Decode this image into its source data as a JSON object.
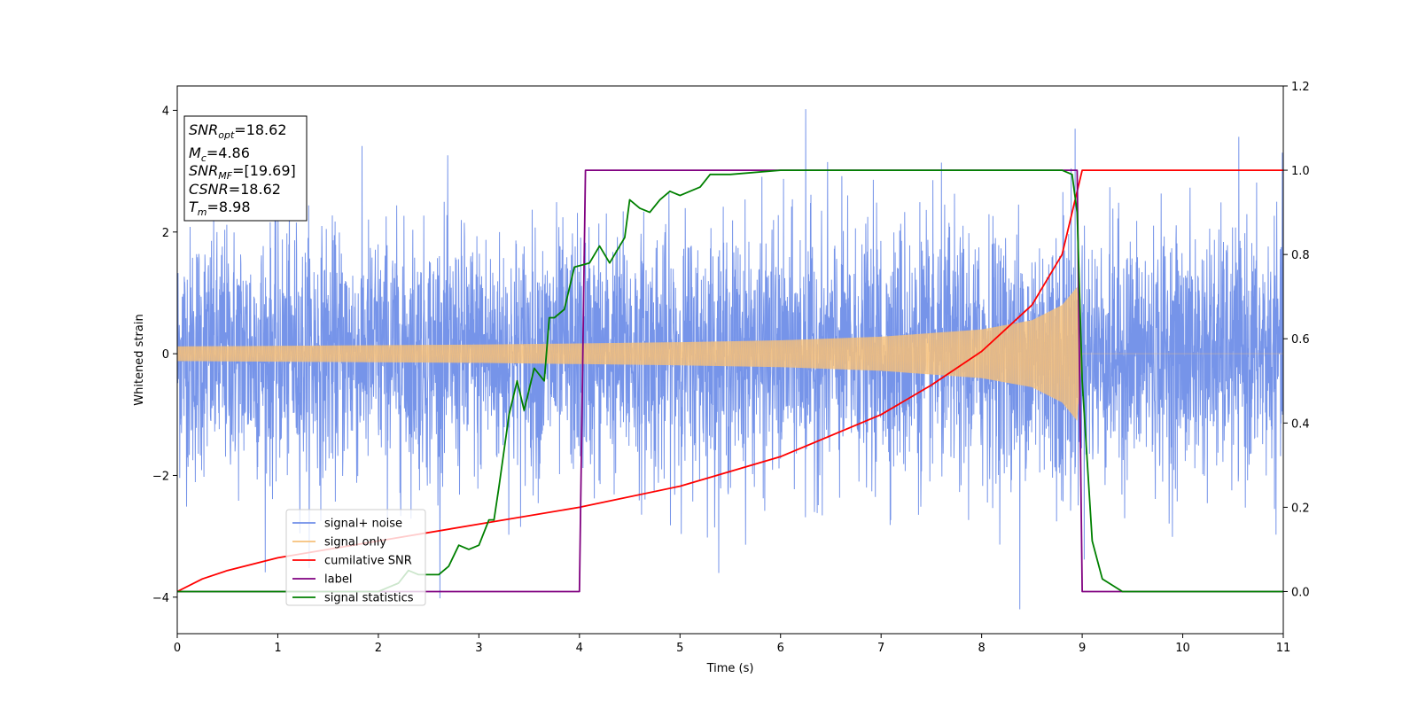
{
  "chart_data": {
    "type": "line",
    "xlabel": "Time (s)",
    "ylabel": "Whitened strain",
    "xlim": [
      0,
      11
    ],
    "ylim": [
      -4.6,
      4.4
    ],
    "y2lim": [
      -0.1,
      1.2
    ],
    "x_ticks": [
      "0",
      "1",
      "2",
      "3",
      "4",
      "5",
      "6",
      "7",
      "8",
      "9",
      "10",
      "11"
    ],
    "y_ticks": [
      "−4",
      "−2",
      "0",
      "2",
      "4"
    ],
    "y2_ticks": [
      "0.0",
      "0.2",
      "0.4",
      "0.6",
      "0.8",
      "1.0",
      "1.2"
    ],
    "grid": false,
    "legend_position": "lower-left",
    "info_box": {
      "snr_opt": {
        "sym": "SNR",
        "sub": "opt",
        "value": "=18.62"
      },
      "mc": {
        "sym": "M",
        "sub": "c",
        "value": "=4.86"
      },
      "snr_mf": {
        "sym": "SNR",
        "sub": "MF",
        "value": "=[19.69]"
      },
      "csnr": {
        "sym": "CSNR",
        "sub": "",
        "value": "=18.62"
      },
      "tm": {
        "sym": "T",
        "sub": "m",
        "value": "=8.98"
      }
    },
    "series": [
      {
        "name": "signal+ noise",
        "color": "#6f8ee8",
        "axis": "left",
        "description_points": {
          "noise_amplitude": 1.0,
          "max_peak": [
            6.25,
            4.02
          ],
          "min_peak": [
            8.38,
            -4.2
          ]
        }
      },
      {
        "name": "signal only",
        "color": "#f6c07a",
        "axis": "left",
        "x": [
          0,
          1,
          2,
          3,
          4,
          5,
          6,
          7,
          8,
          8.5,
          8.8,
          8.95,
          9.0,
          11
        ],
        "envelope": [
          0.12,
          0.13,
          0.14,
          0.15,
          0.17,
          0.19,
          0.22,
          0.28,
          0.4,
          0.55,
          0.8,
          1.1,
          0.0,
          0.0
        ]
      },
      {
        "name": "cumilative SNR",
        "color": "#ff0000",
        "axis": "right",
        "x": [
          0,
          0.25,
          0.5,
          1,
          1.5,
          2,
          3,
          4,
          5,
          6,
          7,
          7.5,
          8,
          8.5,
          8.8,
          9.0,
          11
        ],
        "y": [
          0.0,
          0.03,
          0.05,
          0.08,
          0.1,
          0.12,
          0.16,
          0.2,
          0.25,
          0.32,
          0.42,
          0.49,
          0.57,
          0.68,
          0.8,
          1.0,
          1.0
        ]
      },
      {
        "name": "label",
        "color": "#800080",
        "axis": "right",
        "x": [
          0,
          4.0,
          4.06,
          8.95,
          9.0,
          11
        ],
        "y": [
          0,
          0,
          1,
          1,
          0,
          0
        ]
      },
      {
        "name": "signal statistics",
        "color": "#008000",
        "axis": "right",
        "x": [
          0,
          1,
          2,
          2.1,
          2.2,
          2.3,
          2.4,
          2.5,
          2.6,
          2.7,
          2.8,
          2.9,
          3.0,
          3.1,
          3.15,
          3.2,
          3.3,
          3.38,
          3.45,
          3.55,
          3.65,
          3.7,
          3.75,
          3.85,
          3.95,
          4.1,
          4.2,
          4.3,
          4.45,
          4.5,
          4.6,
          4.7,
          4.8,
          4.9,
          5.0,
          5.1,
          5.2,
          5.3,
          5.5,
          6.0,
          7.0,
          8.0,
          8.8,
          8.9,
          8.95,
          9.0,
          9.1,
          9.2,
          9.4,
          11
        ],
        "y": [
          0.0,
          0.0,
          0.0,
          0.01,
          0.02,
          0.05,
          0.04,
          0.04,
          0.04,
          0.06,
          0.11,
          0.1,
          0.11,
          0.17,
          0.17,
          0.25,
          0.42,
          0.5,
          0.43,
          0.53,
          0.5,
          0.65,
          0.65,
          0.67,
          0.77,
          0.78,
          0.82,
          0.78,
          0.84,
          0.93,
          0.91,
          0.9,
          0.93,
          0.95,
          0.94,
          0.95,
          0.96,
          0.99,
          0.99,
          1.0,
          1.0,
          1.0,
          1.0,
          0.99,
          0.9,
          0.5,
          0.12,
          0.03,
          0.0,
          0.0
        ]
      }
    ]
  }
}
